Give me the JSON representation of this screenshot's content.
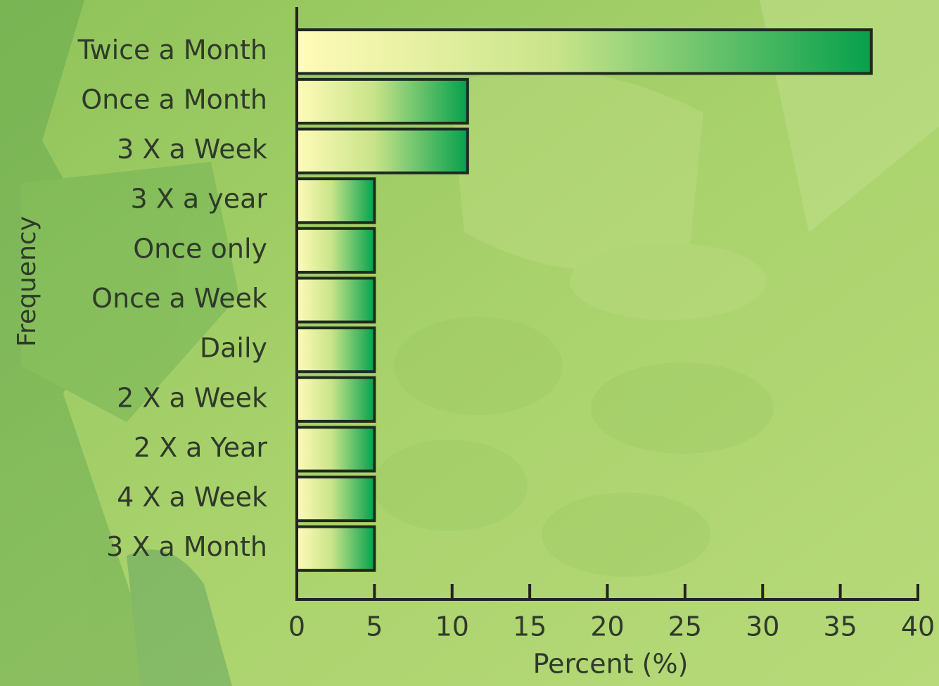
{
  "chart_data": {
    "type": "bar",
    "orientation": "horizontal",
    "categories": [
      "Twice a Month",
      "Once a Month",
      "3 X a Week",
      "3 X a year",
      "Once only",
      "Once a Week",
      "Daily",
      "2 X a Week",
      "2 X a Year",
      "4 X a Week",
      "3 X a Month"
    ],
    "values": [
      37,
      11,
      11,
      5,
      5,
      5,
      5,
      5,
      5,
      5,
      5
    ],
    "color": "#05a04c",
    "xlabel": "Percent (%)",
    "ylabel": "Frequency",
    "xlim": [
      0,
      40
    ],
    "xticks": [
      0,
      5,
      10,
      15,
      20,
      25,
      30,
      35,
      40
    ]
  }
}
